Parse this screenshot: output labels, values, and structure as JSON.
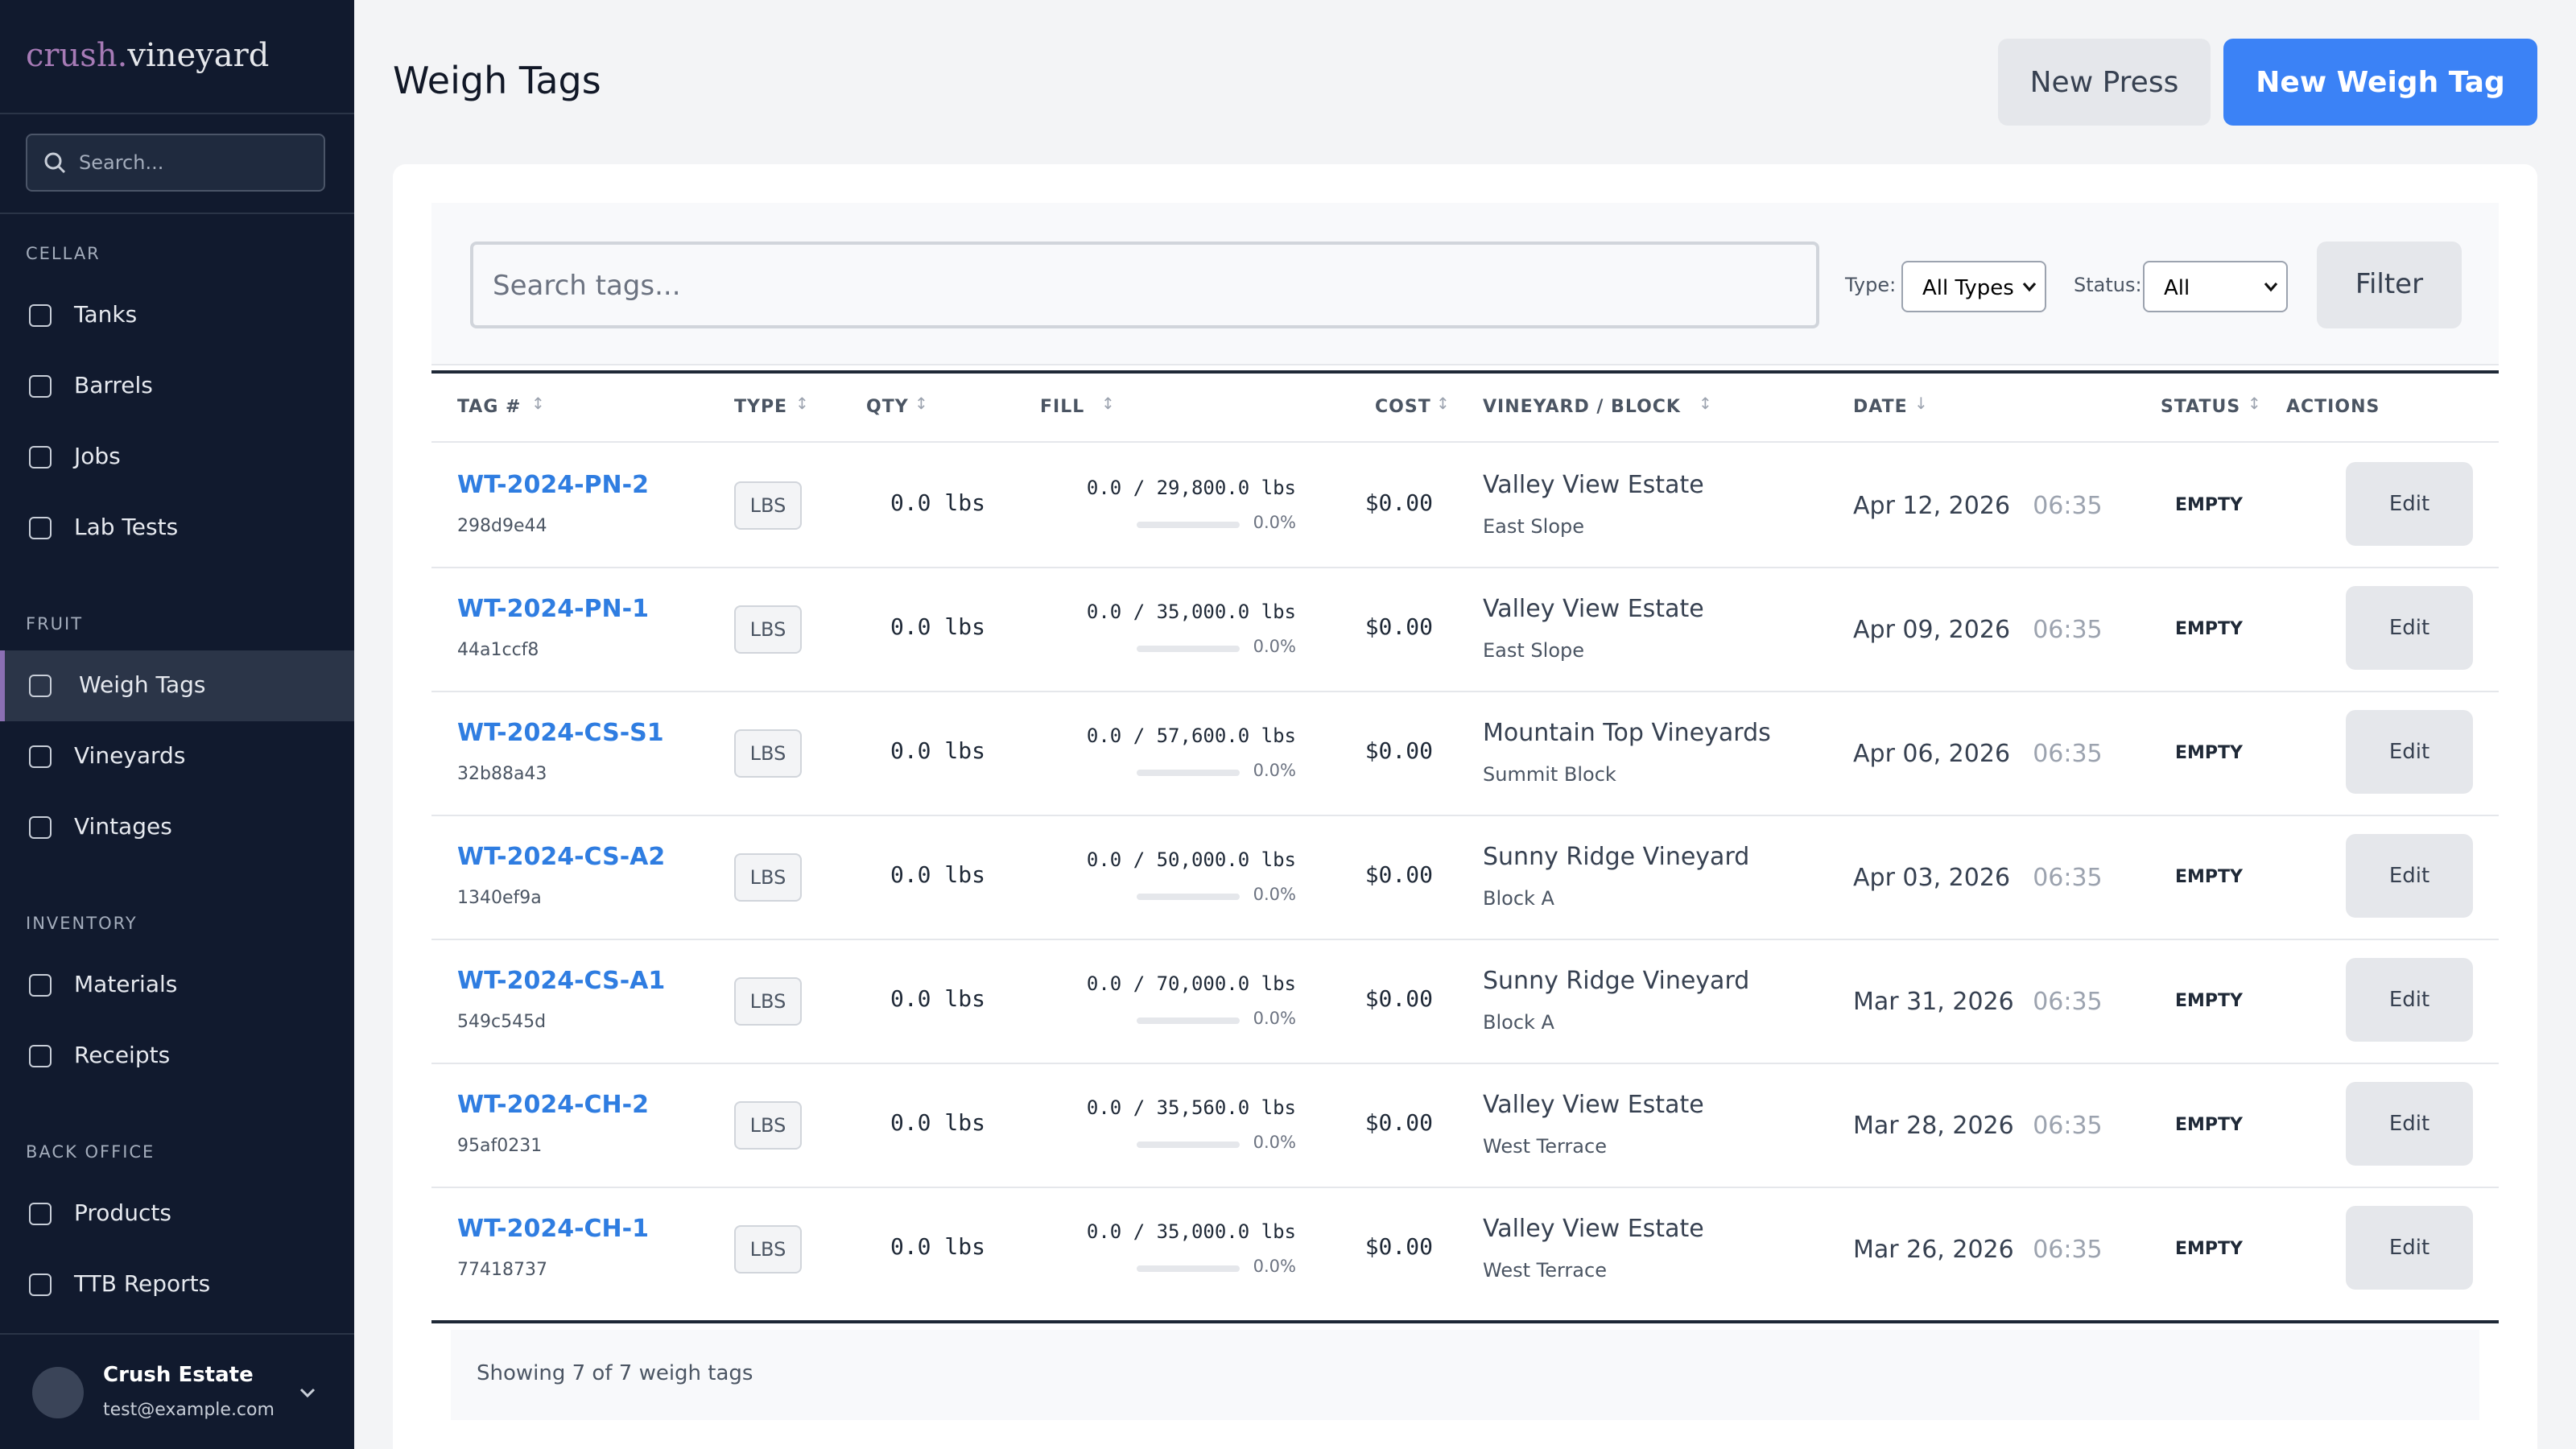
{
  "sidebar": {
    "brand_a": "crush.",
    "brand_b": "vineyard",
    "search_placeholder": "Search...",
    "sections": [
      {
        "title": "CELLAR",
        "items": [
          "Tanks",
          "Barrels",
          "Jobs",
          "Lab Tests"
        ]
      },
      {
        "title": "FRUIT",
        "items": [
          "Weigh Tags",
          "Vineyards",
          "Vintages"
        ]
      },
      {
        "title": "INVENTORY",
        "items": [
          "Materials",
          "Receipts"
        ]
      },
      {
        "title": "BACK OFFICE",
        "items": [
          "Products",
          "TTB Reports"
        ]
      }
    ],
    "active": "Weigh Tags",
    "user": {
      "name": "Crush Estate",
      "email": "test@example.com"
    }
  },
  "header": {
    "title": "Weigh Tags",
    "buttons": [
      "New Press",
      "New Weigh Tag"
    ]
  },
  "filters": {
    "search_placeholder": "Search tags...",
    "type_label": "Type:",
    "type_value": "All Types",
    "status_label": "Status:",
    "status_value": "All",
    "button": "Filter"
  },
  "table": {
    "columns": [
      {
        "label": "TAG #",
        "sort": "↕"
      },
      {
        "label": "TYPE",
        "sort": "↕"
      },
      {
        "label": "QTY",
        "sort": "↕"
      },
      {
        "label": "FILL",
        "sort": "↕"
      },
      {
        "label": "COST",
        "sort": "↕"
      },
      {
        "label": "VINEYARD / BLOCK",
        "sort": "↕"
      },
      {
        "label": "DATE",
        "sort": "↓"
      },
      {
        "label": "STATUS",
        "sort": "↕"
      },
      {
        "label": "ACTIONS"
      }
    ],
    "rows": [
      {
        "tag": "WT-2024-PN-2",
        "id": "298d9e44",
        "type": "LBS",
        "qty": "0.0 lbs",
        "fill": "0.0 / 29,800.0 lbs",
        "fill_pct": "0.0%",
        "cost": "$0.00",
        "vineyard": "Valley View Estate",
        "block": "East Slope",
        "date": "Apr 12, 2026",
        "time": "06:35",
        "status": "EMPTY",
        "action": "Edit"
      },
      {
        "tag": "WT-2024-PN-1",
        "id": "44a1ccf8",
        "type": "LBS",
        "qty": "0.0 lbs",
        "fill": "0.0 / 35,000.0 lbs",
        "fill_pct": "0.0%",
        "cost": "$0.00",
        "vineyard": "Valley View Estate",
        "block": "East Slope",
        "date": "Apr 09, 2026",
        "time": "06:35",
        "status": "EMPTY",
        "action": "Edit"
      },
      {
        "tag": "WT-2024-CS-S1",
        "id": "32b88a43",
        "type": "LBS",
        "qty": "0.0 lbs",
        "fill": "0.0 / 57,600.0 lbs",
        "fill_pct": "0.0%",
        "cost": "$0.00",
        "vineyard": "Mountain Top Vineyards",
        "block": "Summit Block",
        "date": "Apr 06, 2026",
        "time": "06:35",
        "status": "EMPTY",
        "action": "Edit"
      },
      {
        "tag": "WT-2024-CS-A2",
        "id": "1340ef9a",
        "type": "LBS",
        "qty": "0.0 lbs",
        "fill": "0.0 / 50,000.0 lbs",
        "fill_pct": "0.0%",
        "cost": "$0.00",
        "vineyard": "Sunny Ridge Vineyard",
        "block": "Block A",
        "date": "Apr 03, 2026",
        "time": "06:35",
        "status": "EMPTY",
        "action": "Edit"
      },
      {
        "tag": "WT-2024-CS-A1",
        "id": "549c545d",
        "type": "LBS",
        "qty": "0.0 lbs",
        "fill": "0.0 / 70,000.0 lbs",
        "fill_pct": "0.0%",
        "cost": "$0.00",
        "vineyard": "Sunny Ridge Vineyard",
        "block": "Block A",
        "date": "Mar 31, 2026",
        "time": "06:35",
        "status": "EMPTY",
        "action": "Edit"
      },
      {
        "tag": "WT-2024-CH-2",
        "id": "95af0231",
        "type": "LBS",
        "qty": "0.0 lbs",
        "fill": "0.0 / 35,560.0 lbs",
        "fill_pct": "0.0%",
        "cost": "$0.00",
        "vineyard": "Valley View Estate",
        "block": "West Terrace",
        "date": "Mar 28, 2026",
        "time": "06:35",
        "status": "EMPTY",
        "action": "Edit"
      },
      {
        "tag": "WT-2024-CH-1",
        "id": "77418737",
        "type": "LBS",
        "qty": "0.0 lbs",
        "fill": "0.0 / 35,000.0 lbs",
        "fill_pct": "0.0%",
        "cost": "$0.00",
        "vineyard": "Valley View Estate",
        "block": "West Terrace",
        "date": "Mar 26, 2026",
        "time": "06:35",
        "status": "EMPTY",
        "action": "Edit"
      }
    ]
  },
  "footer": "Showing 7 of 7 weigh tags"
}
